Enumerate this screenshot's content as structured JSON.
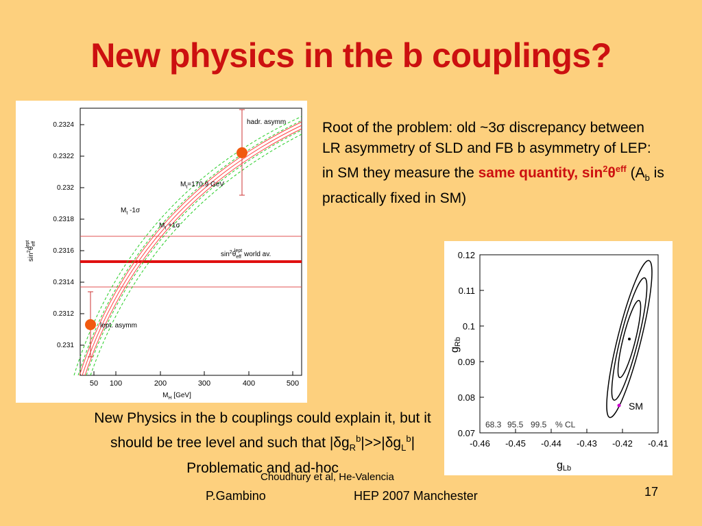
{
  "title": "New physics in the b couplings?",
  "paragraph1": [
    "Root of the problem: old ~3σ discrepancy between LR asymmetry of SLD and FB b asymmetry of LEP: in SM they measure the ",
    "same quantity, sin",
    "2",
    "θ",
    "eff",
    " (A",
    "b",
    " is practically fixed in SM)"
  ],
  "paragraph2": [
    "New Physics in the b couplings could explain it, but it should be tree level and such that |δg",
    "R",
    "b",
    "|>>|δg",
    "L",
    "b",
    "|  Problematic and ad-hoc"
  ],
  "citation": "Choudhury et al, He-Valencia",
  "footer": {
    "author": "P.Gambino",
    "event": "HEP 2007 Manchester",
    "page": "17"
  },
  "left_figure": {
    "yticks": [
      "0.2324",
      "0.2322",
      "0.232",
      "0.2318",
      "0.2316",
      "0.2314",
      "0.2312",
      "0.231"
    ],
    "xticks": [
      "50",
      "100",
      "200",
      "300",
      "400",
      "500"
    ],
    "xlabel": [
      "M",
      "H",
      " [GeV]"
    ],
    "ylabel": [
      "sin",
      "2",
      "θ",
      "eff",
      "lept"
    ],
    "annotations": {
      "hadr": "hadr. asymm",
      "lept": "lept. asymm",
      "mt_central": [
        "M",
        "t",
        "=170.9 GeV"
      ],
      "mt_minus": [
        "M",
        "t",
        " -1σ"
      ],
      "mt_plus": [
        "M",
        "t",
        " +1σ"
      ],
      "world_av": [
        "sin",
        "2",
        "θ",
        "eff",
        "lept",
        " world av."
      ]
    }
  },
  "right_figure": {
    "yticks": [
      "0.12",
      "0.11",
      "0.1",
      "0.09",
      "0.08",
      "0.07"
    ],
    "xticks": [
      "-0.46",
      "-0.45",
      "-0.44",
      "-0.43",
      "-0.42",
      "-0.41"
    ],
    "xlabel": [
      "g",
      "Lb"
    ],
    "ylabel": [
      "g",
      "Rb"
    ],
    "sm_label": "SM",
    "cl": [
      "68.3",
      "95.5",
      "99.5",
      "% CL"
    ]
  }
}
